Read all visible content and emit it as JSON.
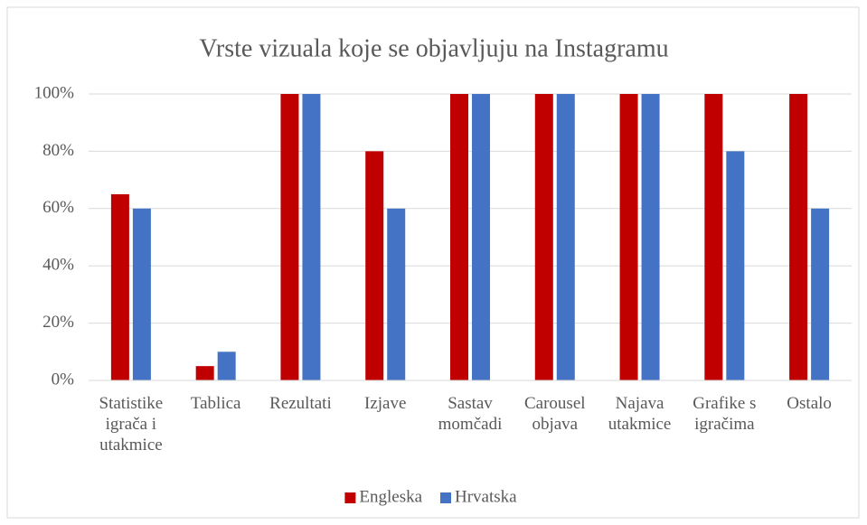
{
  "chart_data": {
    "type": "bar",
    "title": "Vrste vizuala koje se objavljuju na Instagramu",
    "categories": [
      "Statistike igrača i utakmice",
      "Tablica",
      "Rezultati",
      "Izjave",
      "Sastav momčadi",
      "Carousel objava",
      "Najava utakmice",
      "Grafike s igračima",
      "Ostalo"
    ],
    "series": [
      {
        "name": "Engleska",
        "color": "#c00000",
        "values": [
          65,
          5,
          100,
          80,
          100,
          100,
          100,
          100,
          100
        ]
      },
      {
        "name": "Hrvatska",
        "color": "#4472c4",
        "values": [
          60,
          10,
          100,
          60,
          100,
          100,
          100,
          80,
          60
        ]
      }
    ],
    "ylim": [
      0,
      100
    ],
    "yticks": [
      {
        "value": 0,
        "label": "0%"
      },
      {
        "value": 20,
        "label": "20%"
      },
      {
        "value": 40,
        "label": "40%"
      },
      {
        "value": 60,
        "label": "60%"
      },
      {
        "value": 80,
        "label": "80%"
      },
      {
        "value": 100,
        "label": "100%"
      }
    ],
    "grid": true,
    "legend": "bottom"
  }
}
